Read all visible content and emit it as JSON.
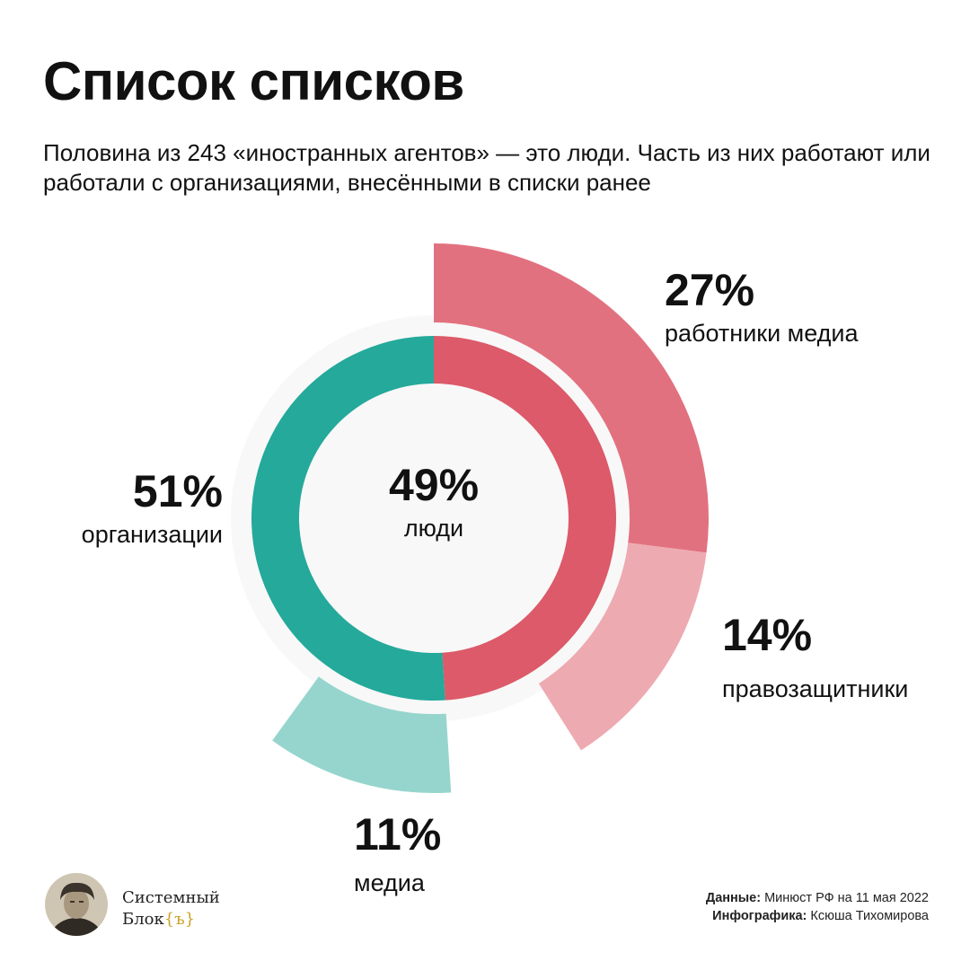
{
  "title": "Список списков",
  "subtitle": "Половина из 243 «иностранных агентов» — это люди. Часть из них работают или работали с организациями, внесёнными в списки ранее",
  "chart_data": {
    "type": "pie",
    "inner_ring": [
      {
        "label": "люди",
        "value": 49,
        "value_label": "49%",
        "color": "#dc5a69"
      },
      {
        "label": "организации",
        "value": 51,
        "value_label": "51%",
        "color": "#24a99b"
      }
    ],
    "outer_ring": [
      {
        "label": "работники медиа",
        "value": 27,
        "value_label": "27%",
        "color": "#e2717f"
      },
      {
        "label": "правозащитники",
        "value": 14,
        "value_label": "14%",
        "color": "#eeaab1"
      },
      {
        "label": "медиа",
        "value": 11,
        "value_label": "11%",
        "color": "#96d5cd"
      }
    ]
  },
  "brand": {
    "line1": "Системный",
    "line2": "Блок",
    "mark": "{ъ}"
  },
  "credits": {
    "data_label": "Данные:",
    "data_value": "Минюст РФ на 11 мая 2022",
    "author_label": "Инфографика:",
    "author_value": "Ксюша Тихомирова"
  },
  "colors": {
    "backdrop": "#f8f8f8",
    "accent": "#c9a227"
  }
}
